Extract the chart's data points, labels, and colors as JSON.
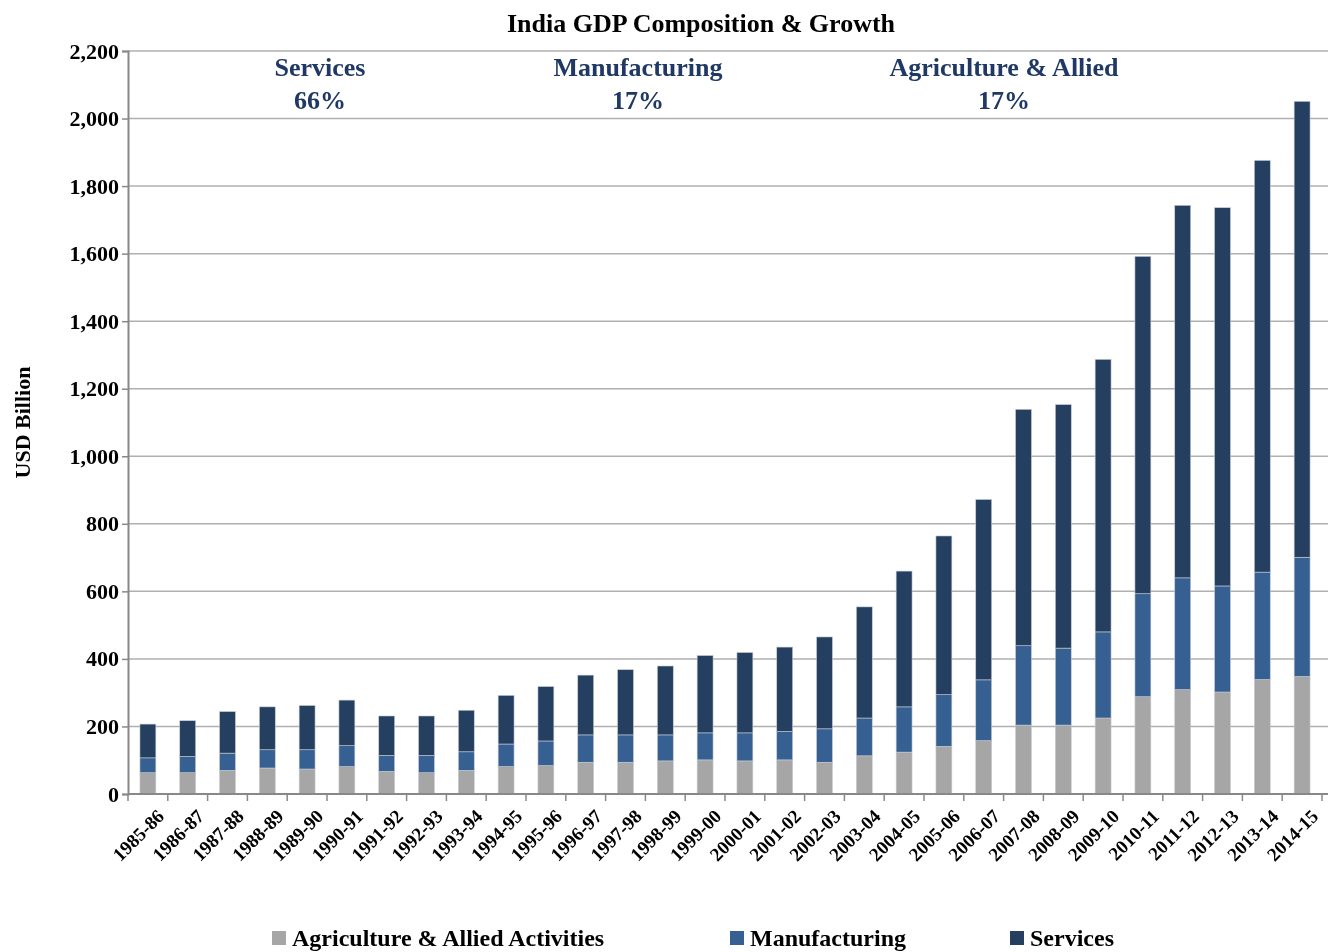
{
  "chart_data": {
    "type": "bar",
    "stacked": true,
    "title": "India GDP Composition & Growth",
    "ylabel": "USD Billion",
    "categories": [
      "1985-86",
      "1986-87",
      "1987-88",
      "1988-89",
      "1989-90",
      "1990-91",
      "1991-92",
      "1992-93",
      "1993-94",
      "1994-95",
      "1995-96",
      "1996-97",
      "1997-98",
      "1998-99",
      "1999-00",
      "2000-01",
      "2001-02",
      "2002-03",
      "2003-04",
      "2004-05",
      "2005-06",
      "2006-07",
      "2007-08",
      "2008-09",
      "2009-10",
      "2010-11",
      "2011-12",
      "2012-13",
      "2013-14",
      "2014-15"
    ],
    "series": [
      {
        "name": "Agriculture & Allied Activities",
        "color": "#a6a6a6",
        "values": [
          63,
          63,
          70,
          77,
          74,
          81,
          67,
          63,
          70,
          81,
          84,
          94,
          94,
          98,
          101,
          98,
          101,
          94,
          113,
          124,
          141,
          158,
          204,
          204,
          225,
          288,
          309,
          302,
          339,
          348
        ]
      },
      {
        "name": "Manufacturing",
        "color": "#376092",
        "values": [
          44,
          48,
          51,
          54,
          57,
          62,
          47,
          51,
          55,
          67,
          73,
          81,
          81,
          77,
          80,
          83,
          84,
          99,
          112,
          134,
          153,
          180,
          235,
          228,
          255,
          305,
          331,
          314,
          318,
          353
        ]
      },
      {
        "name": "Services",
        "color": "#243f60",
        "values": [
          100,
          106,
          123,
          127,
          131,
          135,
          117,
          117,
          123,
          144,
          161,
          177,
          193,
          204,
          229,
          238,
          250,
          272,
          329,
          402,
          470,
          534,
          700,
          721,
          807,
          999,
          1103,
          1120,
          1219,
          1350
        ]
      }
    ],
    "ylim": [
      0,
      2200
    ],
    "yticks": [
      0,
      {
        "value": 200,
        "label": "200"
      },
      {
        "value": 400,
        "label": "400"
      },
      {
        "value": 600,
        "label": "600"
      },
      {
        "value": 800,
        "label": "800"
      },
      {
        "value": 1000,
        "label": "1,000"
      },
      {
        "value": 1200,
        "label": "1,200"
      },
      {
        "value": 1400,
        "label": "1,400"
      },
      {
        "value": 1600,
        "label": "1,600"
      },
      {
        "value": 1800,
        "label": "1,800"
      },
      {
        "value": 2000,
        "label": "2,000"
      },
      {
        "value": 2200,
        "label": "2,200"
      }
    ],
    "grid": "y",
    "legend": "bottom",
    "annotations": [
      "Services\n66%",
      "Manufacturing\n17%",
      "Agriculture & Allied\n17%"
    ]
  }
}
